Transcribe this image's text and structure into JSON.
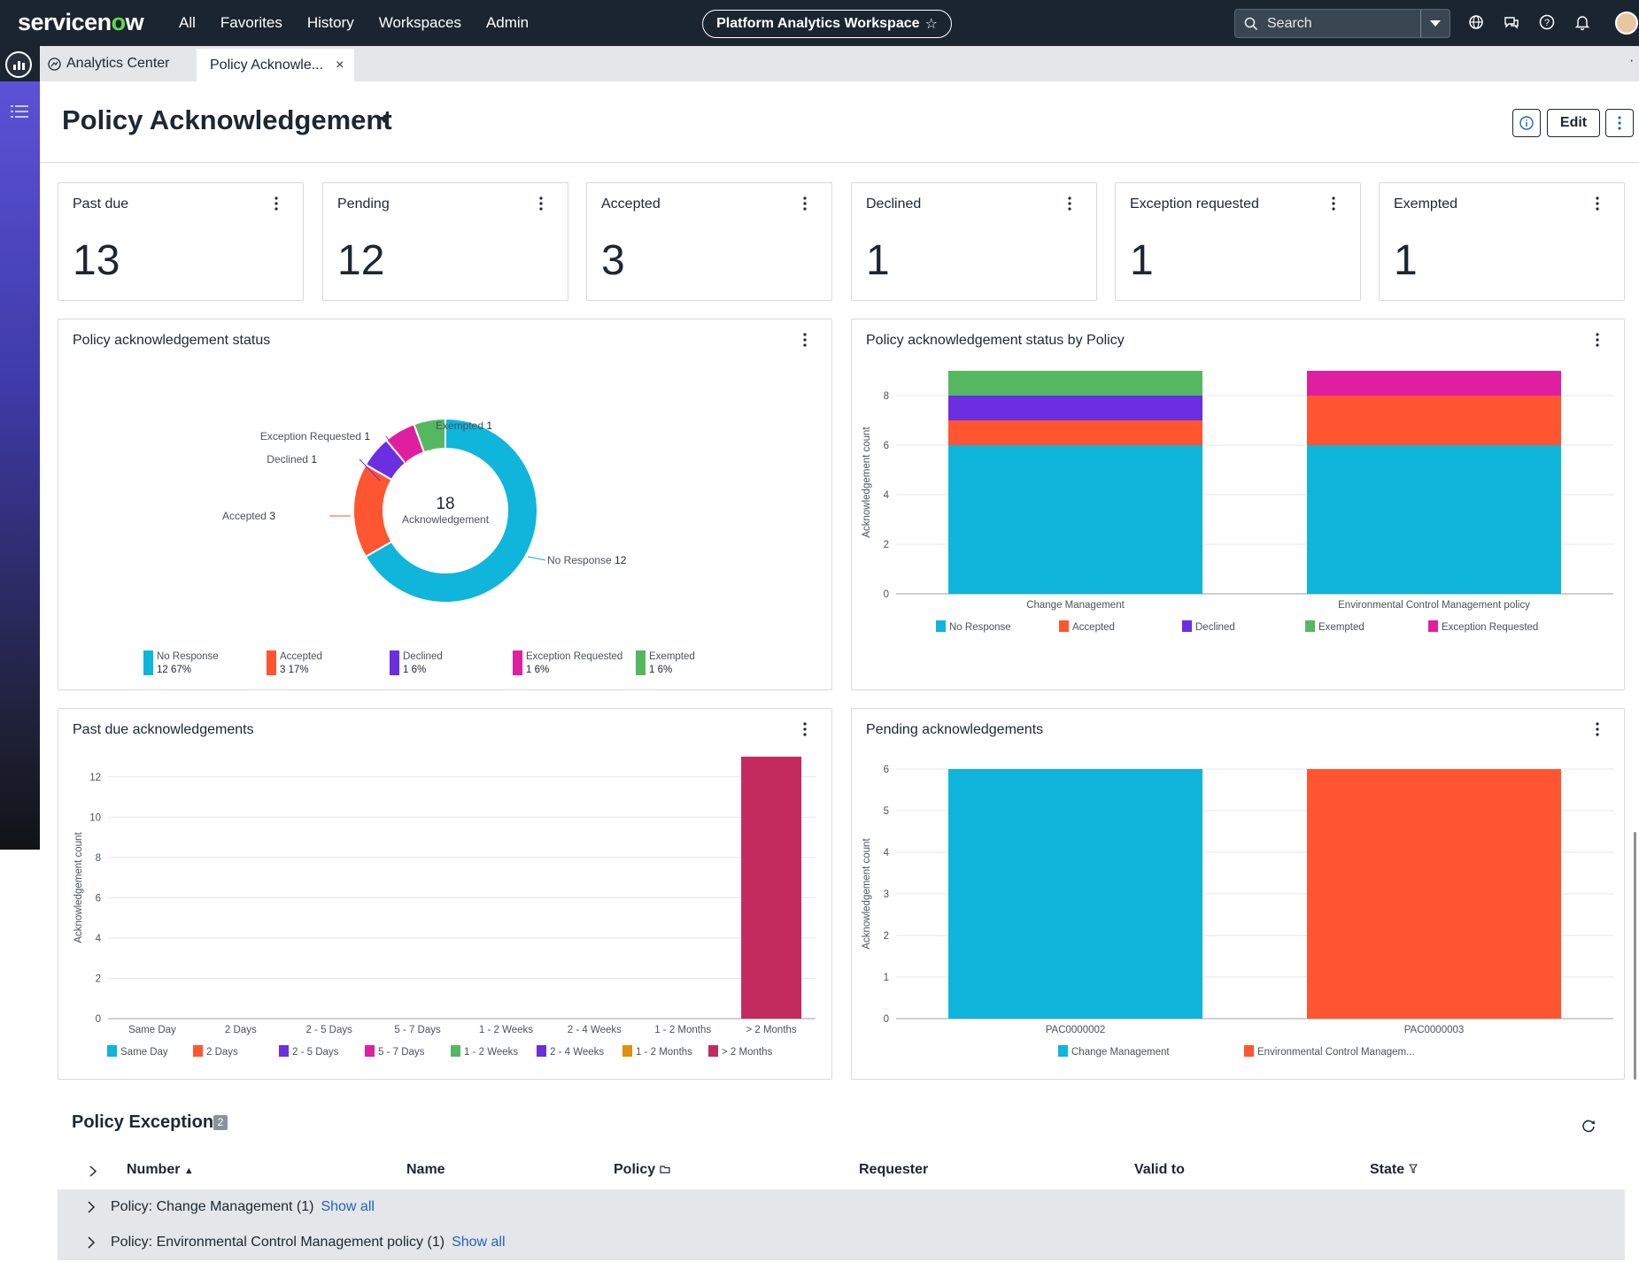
{
  "nav": {
    "logo": "servicenow",
    "links": [
      "All",
      "Favorites",
      "History",
      "Workspaces",
      "Admin"
    ],
    "workspace_title": "Platform Analytics Workspace",
    "search_placeholder": "Search"
  },
  "tabs": {
    "home_label": "Analytics Center",
    "active_label": "Policy Acknowle...",
    "close_glyph": "×"
  },
  "header": {
    "title": "Policy Acknowledgement",
    "edit_label": "Edit"
  },
  "kpis": [
    {
      "label": "Past due",
      "value": "13"
    },
    {
      "label": "Pending",
      "value": "12"
    },
    {
      "label": "Accepted",
      "value": "3"
    },
    {
      "label": "Declined",
      "value": "1"
    },
    {
      "label": "Exception requested",
      "value": "1"
    },
    {
      "label": "Exempted",
      "value": "1"
    }
  ],
  "colors": {
    "no_response": "#0fb5db",
    "accepted": "#ff5530",
    "declined": "#6b2ee0",
    "exception_requested": "#e01fa0",
    "exempted": "#55b860",
    "past_due_bar": "#c32b5e",
    "orange": "#e08f0c"
  },
  "chart_data": [
    {
      "type": "pie",
      "title": "Policy acknowledgement status",
      "center_value": "18",
      "center_label": "Acknowledgement",
      "slices": [
        {
          "name": "No Response",
          "value": 12,
          "percent": "67%"
        },
        {
          "name": "Accepted",
          "value": 3,
          "percent": "17%"
        },
        {
          "name": "Declined",
          "value": 1,
          "percent": "6%"
        },
        {
          "name": "Exception Requested",
          "value": 1,
          "percent": "6%"
        },
        {
          "name": "Exempted",
          "value": 1,
          "percent": "6%"
        }
      ]
    },
    {
      "type": "bar",
      "stacked": true,
      "title": "Policy acknowledgement status by Policy",
      "ylabel": "Acknowledgement count",
      "categories": [
        "Change Management",
        "Environmental Control Management policy"
      ],
      "ylim": [
        0,
        9
      ],
      "yticks": [
        0,
        2,
        4,
        6,
        8
      ],
      "series": [
        {
          "name": "No Response",
          "values": [
            6,
            6
          ]
        },
        {
          "name": "Accepted",
          "values": [
            1,
            2
          ]
        },
        {
          "name": "Declined",
          "values": [
            1,
            0
          ]
        },
        {
          "name": "Exempted",
          "values": [
            1,
            0
          ]
        },
        {
          "name": "Exception Requested",
          "values": [
            0,
            1
          ]
        }
      ]
    },
    {
      "type": "bar",
      "title": "Past due acknowledgements",
      "ylabel": "Acknowledgement count",
      "categories": [
        "Same Day",
        "2 Days",
        "2 - 5 Days",
        "5 - 7 Days",
        "1 - 2 Weeks",
        "2 - 4 Weeks",
        "1 - 2 Months",
        "> 2 Months"
      ],
      "values": [
        0,
        0,
        0,
        0,
        0,
        0,
        0,
        13
      ],
      "ylim": [
        0,
        13
      ],
      "yticks": [
        0,
        2,
        4,
        6,
        8,
        10,
        12
      ],
      "legend": [
        "Same Day",
        "2 Days",
        "2 - 5 Days",
        "5 - 7 Days",
        "1 - 2 Weeks",
        "2 - 4 Weeks",
        "1 - 2 Months",
        "> 2 Months"
      ]
    },
    {
      "type": "bar",
      "title": "Pending acknowledgements",
      "ylabel": "Acknowledgement count",
      "categories": [
        "PAC0000002",
        "PAC0000003"
      ],
      "values": [
        6,
        6
      ],
      "ylim": [
        0,
        6
      ],
      "yticks": [
        0,
        1,
        2,
        3,
        4,
        5,
        6
      ],
      "legend": [
        "Change Management",
        "Environmental Control Managem..."
      ]
    }
  ],
  "exceptions": {
    "title": "Policy Exceptions",
    "count": "2",
    "columns": [
      "Number",
      "Name",
      "Policy",
      "Requester",
      "Valid to",
      "State"
    ],
    "sort_glyph": "▲",
    "groups": [
      {
        "label": "Policy: Change Management (1)",
        "link": "Show all"
      },
      {
        "label": "Policy: Environmental Control Management policy (1)",
        "link": "Show all"
      }
    ]
  }
}
